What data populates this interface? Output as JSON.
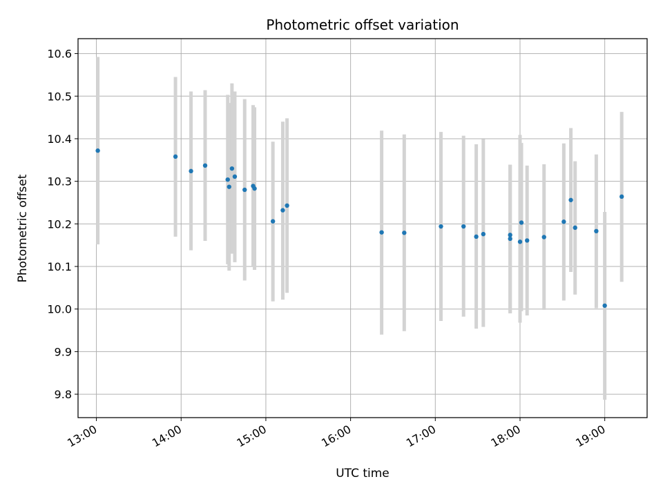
{
  "chart_data": {
    "type": "scatter",
    "title": "Photometric offset variation",
    "xlabel": "UTC time",
    "ylabel": "Photometric offset",
    "xlim": [
      "12:47",
      "19:30"
    ],
    "ylim": [
      9.745,
      10.635
    ],
    "xticks": [
      "13:00",
      "14:00",
      "15:00",
      "16:00",
      "17:00",
      "18:00",
      "19:00"
    ],
    "yticks": [
      "9.8",
      "9.9",
      "10.0",
      "10.1",
      "10.2",
      "10.3",
      "10.4",
      "10.5",
      "10.6"
    ],
    "grid": true,
    "colors": {
      "point": "#1f77b4",
      "errorbar": "#d3d3d3",
      "grid": "#b0b0b0"
    },
    "points": [
      {
        "t": "13:01",
        "y": 10.372,
        "lo": 10.152,
        "hi": 10.592
      },
      {
        "t": "13:56",
        "y": 10.358,
        "lo": 10.17,
        "hi": 10.545
      },
      {
        "t": "14:07",
        "y": 10.324,
        "lo": 10.138,
        "hi": 10.511
      },
      {
        "t": "14:17",
        "y": 10.337,
        "lo": 10.16,
        "hi": 10.514
      },
      {
        "t": "14:33",
        "y": 10.304,
        "lo": 10.105,
        "hi": 10.503
      },
      {
        "t": "14:34",
        "y": 10.287,
        "lo": 10.09,
        "hi": 10.484
      },
      {
        "t": "14:36",
        "y": 10.33,
        "lo": 10.13,
        "hi": 10.53
      },
      {
        "t": "14:38",
        "y": 10.311,
        "lo": 10.11,
        "hi": 10.511
      },
      {
        "t": "14:45",
        "y": 10.28,
        "lo": 10.067,
        "hi": 10.493
      },
      {
        "t": "14:51",
        "y": 10.289,
        "lo": 10.1,
        "hi": 10.479
      },
      {
        "t": "14:52",
        "y": 10.283,
        "lo": 10.092,
        "hi": 10.474
      },
      {
        "t": "15:05",
        "y": 10.206,
        "lo": 10.018,
        "hi": 10.393
      },
      {
        "t": "15:12",
        "y": 10.232,
        "lo": 10.022,
        "hi": 10.44
      },
      {
        "t": "15:15",
        "y": 10.243,
        "lo": 10.038,
        "hi": 10.448
      },
      {
        "t": "16:22",
        "y": 10.18,
        "lo": 9.94,
        "hi": 10.419
      },
      {
        "t": "16:38",
        "y": 10.179,
        "lo": 9.948,
        "hi": 10.41
      },
      {
        "t": "17:04",
        "y": 10.194,
        "lo": 9.972,
        "hi": 10.416
      },
      {
        "t": "17:20",
        "y": 10.194,
        "lo": 9.982,
        "hi": 10.407
      },
      {
        "t": "17:29",
        "y": 10.17,
        "lo": 9.954,
        "hi": 10.387
      },
      {
        "t": "17:34",
        "y": 10.176,
        "lo": 9.958,
        "hi": 10.399
      },
      {
        "t": "17:53",
        "y": 10.174,
        "lo": 9.99,
        "hi": 10.339
      },
      {
        "t": "17:53",
        "y": 10.165,
        "lo": 9.99,
        "hi": 10.339
      },
      {
        "t": "18:00",
        "y": 10.158,
        "lo": 9.968,
        "hi": 10.409
      },
      {
        "t": "18:01",
        "y": 10.203,
        "lo": 9.995,
        "hi": 10.39
      },
      {
        "t": "18:05",
        "y": 10.161,
        "lo": 9.985,
        "hi": 10.337
      },
      {
        "t": "18:17",
        "y": 10.169,
        "lo": 9.998,
        "hi": 10.34
      },
      {
        "t": "18:31",
        "y": 10.205,
        "lo": 10.02,
        "hi": 10.389
      },
      {
        "t": "18:36",
        "y": 10.256,
        "lo": 10.087,
        "hi": 10.425
      },
      {
        "t": "18:39",
        "y": 10.191,
        "lo": 10.034,
        "hi": 10.347
      },
      {
        "t": "18:54",
        "y": 10.183,
        "lo": 10.002,
        "hi": 10.363
      },
      {
        "t": "19:00",
        "y": 10.008,
        "lo": 9.787,
        "hi": 10.228
      },
      {
        "t": "19:12",
        "y": 10.264,
        "lo": 10.064,
        "hi": 10.463
      }
    ]
  }
}
